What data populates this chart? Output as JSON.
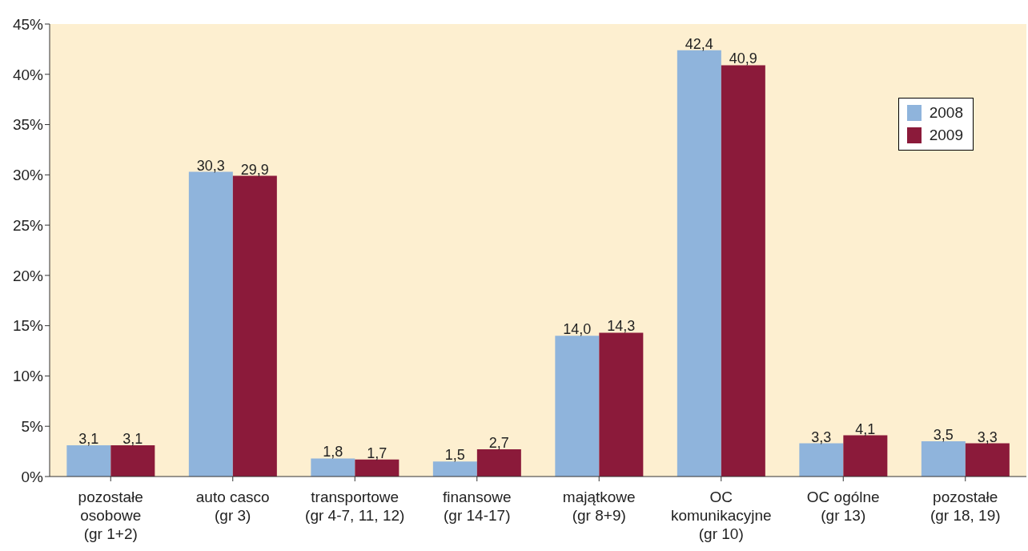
{
  "chart_data": {
    "type": "bar",
    "categories": [
      "pozostałe\nosobowe\n(gr 1+2)",
      "auto casco\n(gr 3)",
      "transportowe\n(gr 4-7, 11, 12)",
      "finansowe\n(gr 14-17)",
      "majątkowe\n(gr 8+9)",
      "OC\nkomunikacyjne\n(gr 10)",
      "OC ogólne\n(gr 13)",
      "pozostałe\n(gr 18, 19)"
    ],
    "series": [
      {
        "name": "2008",
        "color": "#8fb4dc",
        "values": [
          3.1,
          30.3,
          1.8,
          1.5,
          14.0,
          42.4,
          3.3,
          3.5
        ],
        "value_labels": [
          "3,1",
          "30,3",
          "1,8",
          "1,5",
          "14,0",
          "42,4",
          "3,3",
          "3,5"
        ]
      },
      {
        "name": "2009",
        "color": "#8b1a3a",
        "values": [
          3.1,
          29.9,
          1.7,
          2.7,
          14.3,
          40.9,
          4.1,
          3.3
        ],
        "value_labels": [
          "3,1",
          "29,9",
          "1,7",
          "2,7",
          "14,3",
          "40,9",
          "4,1",
          "3,3"
        ]
      }
    ],
    "ylim": [
      0,
      45
    ],
    "yticks": [
      {
        "value": 0,
        "label": "0%"
      },
      {
        "value": 5,
        "label": "5%"
      },
      {
        "value": 10,
        "label": "10%"
      },
      {
        "value": 15,
        "label": "15%"
      },
      {
        "value": 20,
        "label": "20%"
      },
      {
        "value": 25,
        "label": "25%"
      },
      {
        "value": 30,
        "label": "30%"
      },
      {
        "value": 35,
        "label": "35%"
      },
      {
        "value": 40,
        "label": "40%"
      },
      {
        "value": 45,
        "label": "45%"
      }
    ],
    "grid": false,
    "legend": "top right"
  }
}
